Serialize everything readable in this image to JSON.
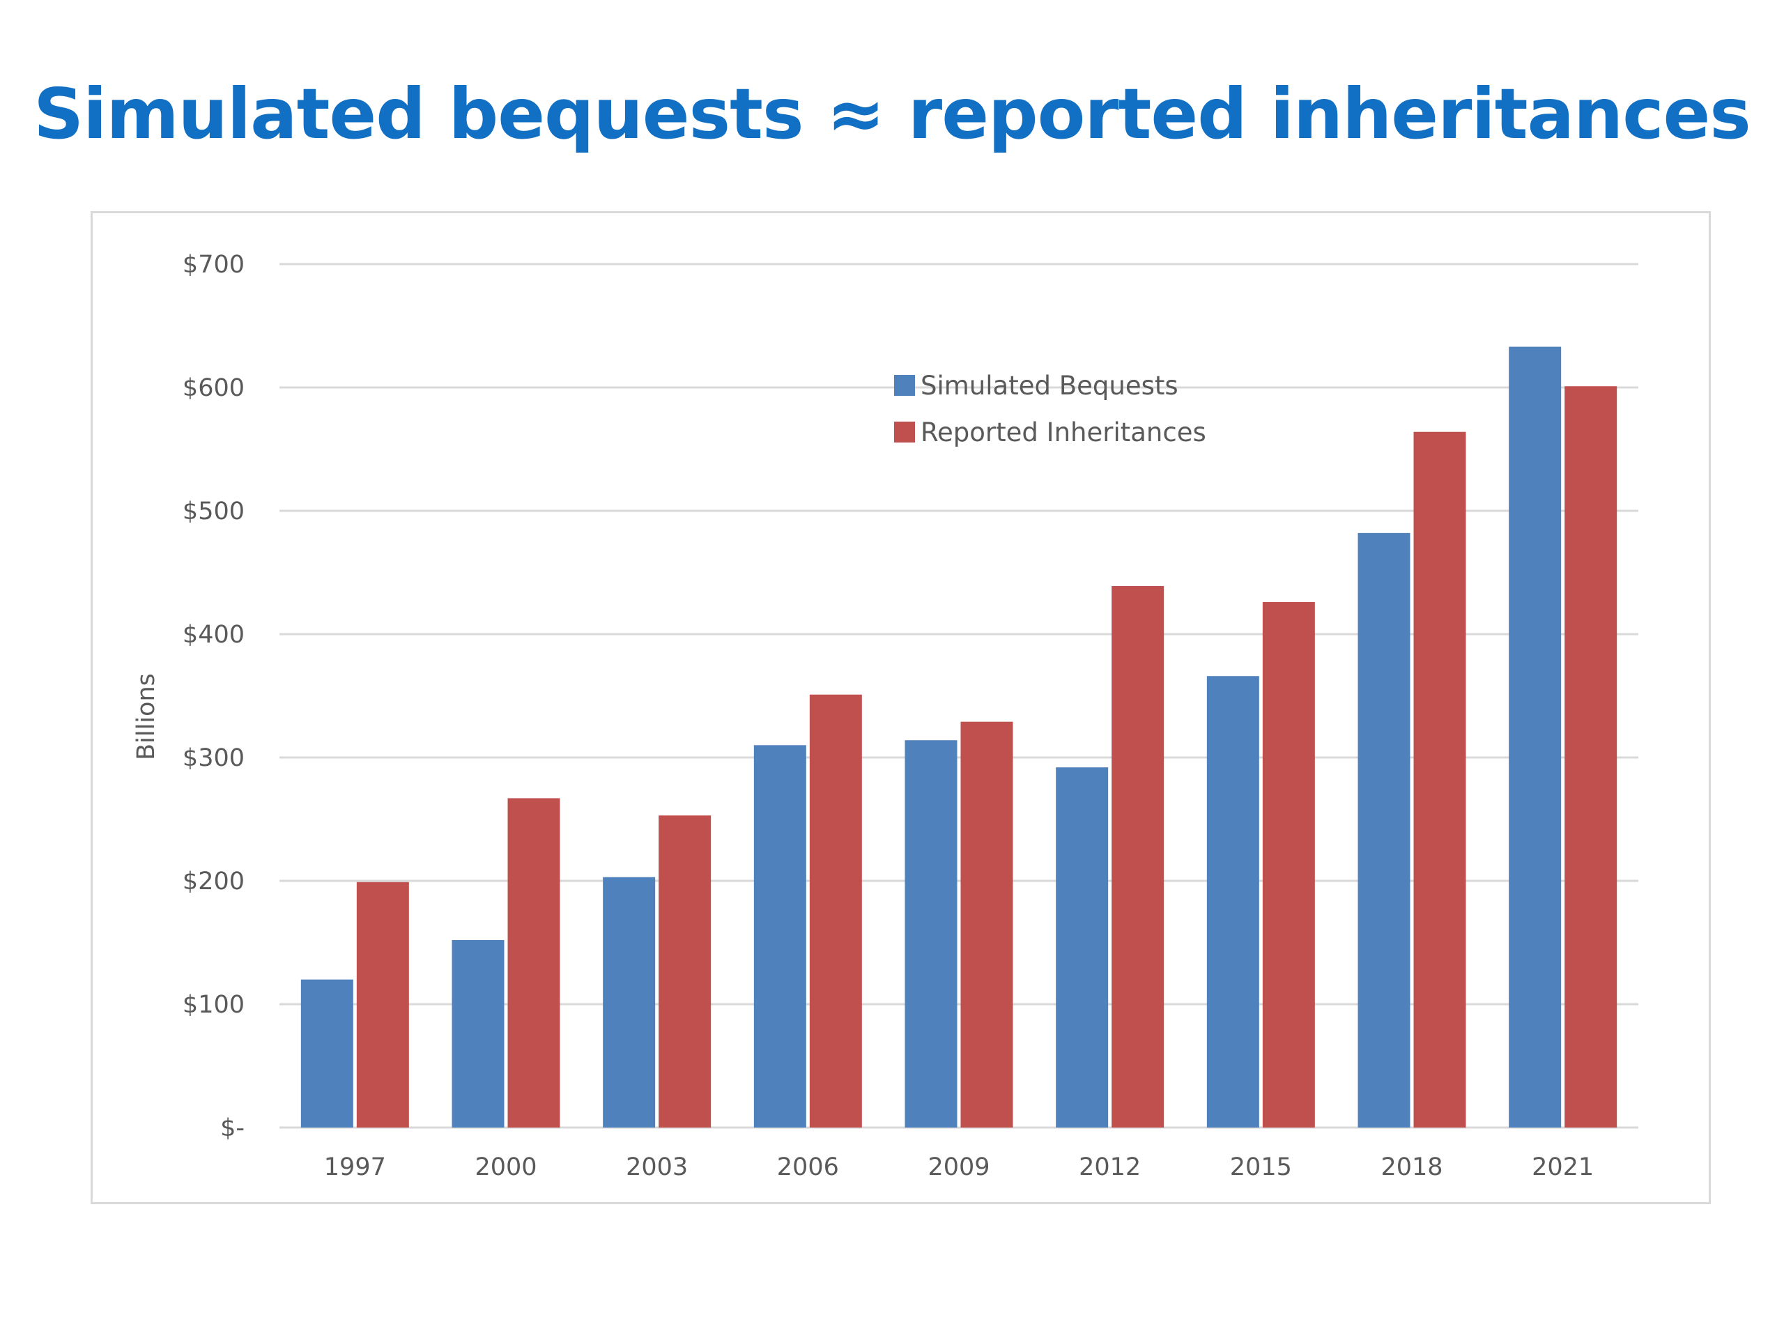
{
  "title": "Simulated bequests ≈ reported inheritances",
  "chart_data": {
    "type": "bar",
    "title": "Simulated bequests ≈ reported inheritances",
    "xlabel": "",
    "ylabel": "Billions",
    "categories": [
      "1997",
      "2000",
      "2003",
      "2006",
      "2009",
      "2012",
      "2015",
      "2018",
      "2021"
    ],
    "series": [
      {
        "name": "Simulated Bequests",
        "color": "#4F81BD",
        "values": [
          120,
          152,
          203,
          310,
          314,
          292,
          366,
          482,
          633
        ]
      },
      {
        "name": "Reported Inheritances",
        "color": "#C0504D",
        "values": [
          199,
          267,
          253,
          351,
          329,
          439,
          426,
          564,
          601
        ]
      }
    ],
    "ylim": [
      0,
      700
    ],
    "yticks": [
      0,
      100,
      200,
      300,
      400,
      500,
      600,
      700
    ],
    "ytick_labels": [
      "$-",
      "$100",
      "$200",
      "$300",
      "$400",
      "$500",
      "$600",
      "$700"
    ],
    "grid": true,
    "gridline_color": "#D9D9D9",
    "legend": "upper-center"
  }
}
